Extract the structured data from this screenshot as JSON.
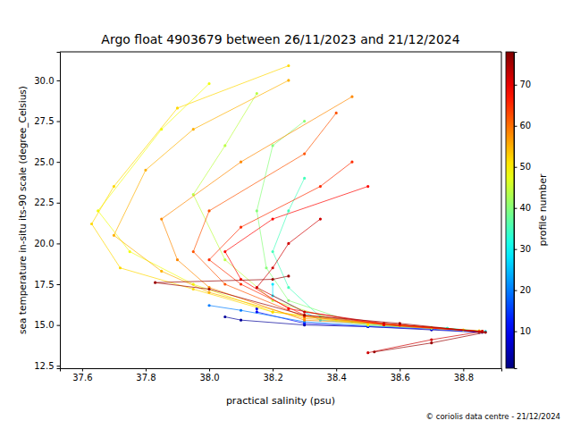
{
  "chart_data": {
    "type": "line",
    "title": "Argo float 4903679 between 26/11/2023 and 21/12/2024",
    "x_label": "practical salinity (psu)",
    "y_label": "sea temperature in-situ its-90 scale (degree_Celsius)",
    "footer": "© coriolis data centre - 21/12/2024",
    "marker": "o",
    "line_style": "solid",
    "grid": false,
    "xlim": [
      37.53,
      38.92
    ],
    "ylim": [
      12.35,
      31.75
    ],
    "xticks": [
      37.6,
      37.8,
      {
        "value": 38,
        "label": "38.0"
      },
      38.2,
      38.4,
      38.6,
      38.8
    ],
    "yticks": [
      12.5,
      {
        "value": 15,
        "label": "15.0"
      },
      17.5,
      {
        "value": 20,
        "label": "20.0"
      },
      22.5,
      {
        "value": 25,
        "label": "25.0"
      },
      27.5,
      {
        "value": 30,
        "label": "30.0"
      }
    ],
    "colorbar": {
      "label": "profile number",
      "range": [
        1,
        78
      ],
      "ticks": [
        10,
        20,
        30,
        40,
        50,
        60,
        70
      ]
    },
    "series": [
      {
        "profile": 3,
        "x": [
          38.05,
          38.1,
          38.3,
          38.5,
          38.7,
          38.85
        ],
        "y": [
          15.5,
          15.3,
          15.0,
          14.9,
          14.7,
          14.55
        ]
      },
      {
        "profile": 10,
        "x": [
          38.15,
          38.15,
          38.3,
          38.5,
          38.7,
          38.86
        ],
        "y": [
          16.0,
          15.8,
          15.1,
          14.9,
          14.75,
          14.55
        ]
      },
      {
        "profile": 20,
        "x": [
          38.0,
          38.1,
          38.3,
          38.5,
          38.7,
          38.86
        ],
        "y": [
          16.2,
          15.9,
          15.2,
          14.95,
          14.8,
          14.6
        ]
      },
      {
        "profile": 28,
        "x": [
          38.2,
          38.2,
          38.35,
          38.55,
          38.75,
          38.87
        ],
        "y": [
          17.5,
          16.8,
          15.3,
          14.95,
          14.8,
          14.6
        ]
      },
      {
        "profile": 35,
        "x": [
          38.3,
          38.25,
          38.2,
          38.25,
          38.35,
          38.55,
          38.75,
          38.86
        ],
        "y": [
          24.0,
          22.0,
          19.5,
          17.3,
          15.5,
          15.0,
          14.8,
          14.6
        ]
      },
      {
        "profile": 40,
        "x": [
          38.3,
          38.2,
          38.15,
          38.18,
          38.25,
          38.45,
          38.7,
          38.86
        ],
        "y": [
          27.5,
          26.0,
          22.0,
          18.5,
          16.5,
          15.2,
          14.8,
          14.6
        ]
      },
      {
        "profile": 44,
        "x": [
          38.15,
          38.05,
          37.95,
          38.05,
          38.2,
          38.4,
          38.7
        ],
        "y": [
          29.2,
          26.0,
          23.0,
          19.0,
          16.5,
          15.3,
          14.85
        ]
      },
      {
        "profile": 48,
        "x": [
          38.0,
          37.85,
          37.65,
          37.75,
          37.95,
          38.2,
          38.5,
          38.8
        ],
        "y": [
          29.8,
          27.0,
          22.0,
          19.5,
          17.5,
          15.8,
          15.0,
          14.7
        ]
      },
      {
        "profile": 52,
        "x": [
          38.25,
          37.9,
          37.7,
          37.63,
          37.72,
          37.95,
          38.2,
          38.5,
          38.85
        ],
        "y": [
          30.9,
          28.3,
          23.5,
          21.2,
          18.5,
          17.2,
          15.8,
          15.1,
          14.65
        ]
      },
      {
        "profile": 55,
        "x": [
          38.25,
          37.95,
          37.8,
          37.7,
          37.85,
          38.0,
          38.3,
          38.6,
          38.86
        ],
        "y": [
          30.0,
          27.0,
          24.5,
          20.5,
          18.3,
          17.0,
          15.4,
          15.0,
          14.6
        ]
      },
      {
        "profile": 58,
        "x": [
          38.45,
          38.1,
          37.85,
          37.9,
          38.0,
          38.3,
          38.6,
          38.85
        ],
        "y": [
          29.0,
          25.0,
          21.5,
          19.0,
          17.3,
          15.3,
          15.0,
          14.6
        ]
      },
      {
        "profile": 62,
        "x": [
          38.4,
          38.3,
          38.0,
          37.95,
          38.05,
          38.3,
          38.6,
          38.85
        ],
        "y": [
          28.0,
          25.5,
          22.0,
          19.5,
          17.5,
          15.5,
          15.0,
          14.6
        ]
      },
      {
        "profile": 65,
        "x": [
          38.45,
          38.35,
          38.1,
          38.0,
          38.1,
          38.3,
          38.6,
          38.86
        ],
        "y": [
          25.0,
          23.5,
          21.0,
          19.0,
          17.5,
          15.6,
          15.0,
          14.6
        ]
      },
      {
        "profile": 68,
        "x": [
          38.5,
          38.2,
          38.05,
          38.1,
          38.25,
          38.55,
          38.86
        ],
        "y": [
          23.5,
          21.5,
          19.5,
          17.8,
          16.0,
          15.0,
          14.6
        ]
      },
      {
        "profile": 72,
        "x": [
          38.35,
          38.25,
          38.2,
          38.15,
          38.3,
          38.55,
          38.86,
          38.7,
          38.5
        ],
        "y": [
          21.5,
          20.0,
          18.5,
          17.3,
          15.8,
          15.1,
          14.6,
          14.1,
          13.3
        ]
      },
      {
        "profile": 76,
        "x": [
          38.25,
          38.2,
          37.83,
          38.0,
          38.3,
          38.6,
          38.87,
          38.7,
          38.52
        ],
        "y": [
          18.0,
          17.8,
          17.6,
          17.2,
          15.6,
          15.1,
          14.55,
          13.9,
          13.35
        ]
      }
    ]
  }
}
